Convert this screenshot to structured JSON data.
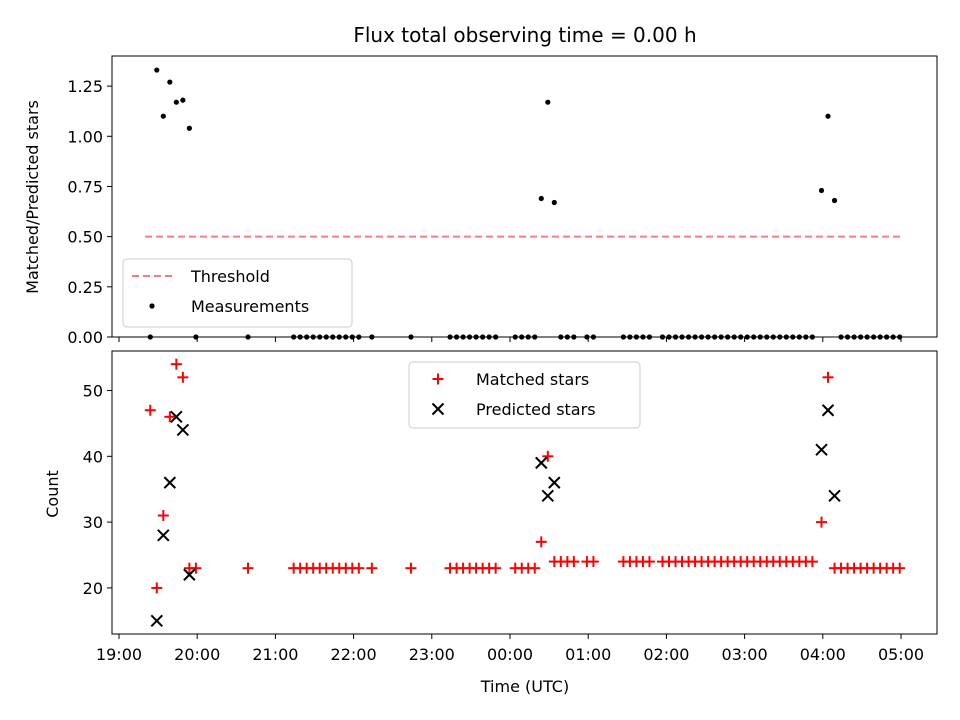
{
  "chart_data": [
    {
      "type": "scatter",
      "title": "Flux total observing time = 0.00 h",
      "xlabel": "",
      "ylabel": "Matched/Predicted stars",
      "xlim": [
        "19:00",
        "05:00"
      ],
      "ylim": [
        0,
        1.4
      ],
      "yticks": [
        "0.00",
        "0.25",
        "0.50",
        "0.75",
        "1.00",
        "1.25"
      ],
      "legend_position": "lower-left",
      "grid": false,
      "threshold": {
        "name": "Threshold",
        "value": 0.5,
        "x_start": "19:20",
        "x_end": "05:00",
        "color": "#f08080",
        "style": "dashed"
      },
      "series": [
        {
          "name": "Measurements",
          "color": "#000000",
          "marker": "dot",
          "points": [
            [
              "19:24",
              0.0
            ],
            [
              "19:29",
              1.33
            ],
            [
              "19:34",
              1.1
            ],
            [
              "19:39",
              1.27
            ],
            [
              "19:44",
              1.17
            ],
            [
              "19:49",
              1.18
            ],
            [
              "19:54",
              1.04
            ],
            [
              "19:59",
              0.0
            ],
            [
              "20:39",
              0.0
            ],
            [
              "21:14",
              0.0
            ],
            [
              "21:19",
              0.0
            ],
            [
              "21:24",
              0.0
            ],
            [
              "21:29",
              0.0
            ],
            [
              "21:34",
              0.0
            ],
            [
              "21:39",
              0.0
            ],
            [
              "21:44",
              0.0
            ],
            [
              "21:49",
              0.0
            ],
            [
              "21:54",
              0.0
            ],
            [
              "21:59",
              0.0
            ],
            [
              "22:04",
              0.0
            ],
            [
              "22:14",
              0.0
            ],
            [
              "22:44",
              0.0
            ],
            [
              "23:14",
              0.0
            ],
            [
              "23:19",
              0.0
            ],
            [
              "23:24",
              0.0
            ],
            [
              "23:29",
              0.0
            ],
            [
              "23:34",
              0.0
            ],
            [
              "23:39",
              0.0
            ],
            [
              "23:44",
              0.0
            ],
            [
              "23:49",
              0.0
            ],
            [
              "00:04",
              0.0
            ],
            [
              "00:09",
              0.0
            ],
            [
              "00:14",
              0.0
            ],
            [
              "00:19",
              0.0
            ],
            [
              "00:24",
              0.69
            ],
            [
              "00:29",
              1.17
            ],
            [
              "00:34",
              0.67
            ],
            [
              "00:39",
              0.0
            ],
            [
              "00:44",
              0.0
            ],
            [
              "00:49",
              0.0
            ],
            [
              "00:59",
              0.0
            ],
            [
              "01:04",
              0.0
            ],
            [
              "01:27",
              0.0
            ],
            [
              "01:32",
              0.0
            ],
            [
              "01:37",
              0.0
            ],
            [
              "01:42",
              0.0
            ],
            [
              "01:47",
              0.0
            ],
            [
              "01:57",
              0.0
            ],
            [
              "02:02",
              0.0
            ],
            [
              "02:07",
              0.0
            ],
            [
              "02:12",
              0.0
            ],
            [
              "02:17",
              0.0
            ],
            [
              "02:22",
              0.0
            ],
            [
              "02:27",
              0.0
            ],
            [
              "02:32",
              0.0
            ],
            [
              "02:37",
              0.0
            ],
            [
              "02:42",
              0.0
            ],
            [
              "02:47",
              0.0
            ],
            [
              "02:52",
              0.0
            ],
            [
              "02:57",
              0.0
            ],
            [
              "03:02",
              0.0
            ],
            [
              "03:07",
              0.0
            ],
            [
              "03:12",
              0.0
            ],
            [
              "03:17",
              0.0
            ],
            [
              "03:22",
              0.0
            ],
            [
              "03:27",
              0.0
            ],
            [
              "03:32",
              0.0
            ],
            [
              "03:37",
              0.0
            ],
            [
              "03:42",
              0.0
            ],
            [
              "03:47",
              0.0
            ],
            [
              "03:52",
              0.0
            ],
            [
              "03:59",
              0.73
            ],
            [
              "04:04",
              1.1
            ],
            [
              "04:09",
              0.68
            ],
            [
              "04:14",
              0.0
            ],
            [
              "04:19",
              0.0
            ],
            [
              "04:24",
              0.0
            ],
            [
              "04:29",
              0.0
            ],
            [
              "04:34",
              0.0
            ],
            [
              "04:39",
              0.0
            ],
            [
              "04:44",
              0.0
            ],
            [
              "04:49",
              0.0
            ],
            [
              "04:54",
              0.0
            ],
            [
              "04:59",
              0.0
            ]
          ]
        }
      ]
    },
    {
      "type": "scatter",
      "title": "",
      "xlabel": "Time (UTC)",
      "ylabel": "Count",
      "xlim": [
        "19:00",
        "05:00"
      ],
      "ylim": [
        13,
        56
      ],
      "yticks": [
        "20",
        "30",
        "40",
        "50"
      ],
      "xticks": [
        "19:00",
        "20:00",
        "21:00",
        "22:00",
        "23:00",
        "00:00",
        "01:00",
        "02:00",
        "03:00",
        "04:00",
        "05:00"
      ],
      "legend_position": "top-center",
      "grid": false,
      "series": [
        {
          "name": "Matched stars",
          "color": "#ff0000",
          "marker": "plus",
          "points": [
            [
              "19:24",
              47
            ],
            [
              "19:29",
              20
            ],
            [
              "19:34",
              31
            ],
            [
              "19:39",
              46
            ],
            [
              "19:44",
              54
            ],
            [
              "19:49",
              52
            ],
            [
              "19:54",
              23
            ],
            [
              "19:59",
              23
            ],
            [
              "20:39",
              23
            ],
            [
              "21:14",
              23
            ],
            [
              "21:19",
              23
            ],
            [
              "21:24",
              23
            ],
            [
              "21:29",
              23
            ],
            [
              "21:34",
              23
            ],
            [
              "21:39",
              23
            ],
            [
              "21:44",
              23
            ],
            [
              "21:49",
              23
            ],
            [
              "21:54",
              23
            ],
            [
              "21:59",
              23
            ],
            [
              "22:04",
              23
            ],
            [
              "22:14",
              23
            ],
            [
              "22:44",
              23
            ],
            [
              "23:14",
              23
            ],
            [
              "23:19",
              23
            ],
            [
              "23:24",
              23
            ],
            [
              "23:29",
              23
            ],
            [
              "23:34",
              23
            ],
            [
              "23:39",
              23
            ],
            [
              "23:44",
              23
            ],
            [
              "23:49",
              23
            ],
            [
              "00:04",
              23
            ],
            [
              "00:09",
              23
            ],
            [
              "00:14",
              23
            ],
            [
              "00:19",
              23
            ],
            [
              "00:24",
              27
            ],
            [
              "00:29",
              40
            ],
            [
              "00:34",
              24
            ],
            [
              "00:39",
              24
            ],
            [
              "00:44",
              24
            ],
            [
              "00:49",
              24
            ],
            [
              "00:59",
              24
            ],
            [
              "01:04",
              24
            ],
            [
              "01:27",
              24
            ],
            [
              "01:32",
              24
            ],
            [
              "01:37",
              24
            ],
            [
              "01:42",
              24
            ],
            [
              "01:47",
              24
            ],
            [
              "01:57",
              24
            ],
            [
              "02:02",
              24
            ],
            [
              "02:07",
              24
            ],
            [
              "02:12",
              24
            ],
            [
              "02:17",
              24
            ],
            [
              "02:22",
              24
            ],
            [
              "02:27",
              24
            ],
            [
              "02:32",
              24
            ],
            [
              "02:37",
              24
            ],
            [
              "02:42",
              24
            ],
            [
              "02:47",
              24
            ],
            [
              "02:52",
              24
            ],
            [
              "02:57",
              24
            ],
            [
              "03:02",
              24
            ],
            [
              "03:07",
              24
            ],
            [
              "03:12",
              24
            ],
            [
              "03:17",
              24
            ],
            [
              "03:22",
              24
            ],
            [
              "03:27",
              24
            ],
            [
              "03:32",
              24
            ],
            [
              "03:37",
              24
            ],
            [
              "03:42",
              24
            ],
            [
              "03:47",
              24
            ],
            [
              "03:52",
              24
            ],
            [
              "03:59",
              30
            ],
            [
              "04:04",
              52
            ],
            [
              "04:09",
              23
            ],
            [
              "04:14",
              23
            ],
            [
              "04:19",
              23
            ],
            [
              "04:24",
              23
            ],
            [
              "04:29",
              23
            ],
            [
              "04:34",
              23
            ],
            [
              "04:39",
              23
            ],
            [
              "04:44",
              23
            ],
            [
              "04:49",
              23
            ],
            [
              "04:54",
              23
            ],
            [
              "04:59",
              23
            ]
          ]
        },
        {
          "name": "Predicted stars",
          "color": "#000000",
          "marker": "x",
          "points": [
            [
              "19:29",
              15
            ],
            [
              "19:34",
              28
            ],
            [
              "19:39",
              36
            ],
            [
              "19:44",
              46
            ],
            [
              "19:49",
              44
            ],
            [
              "19:54",
              22
            ],
            [
              "00:24",
              39
            ],
            [
              "00:29",
              34
            ],
            [
              "00:34",
              36
            ],
            [
              "03:59",
              41
            ],
            [
              "04:04",
              47
            ],
            [
              "04:09",
              34
            ]
          ]
        }
      ]
    }
  ]
}
